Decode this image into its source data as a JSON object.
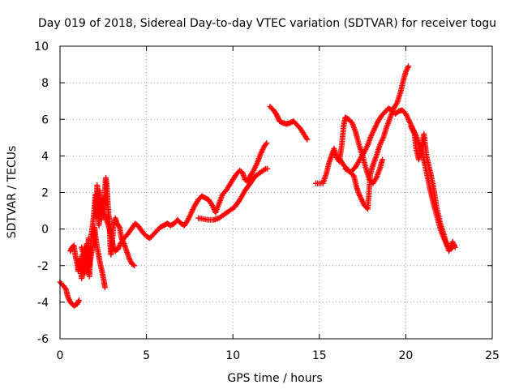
{
  "chart_data": {
    "type": "scatter",
    "title": "Day 019 of 2018, Sidereal Day-to-day VTEC variation (SDTVAR) for receiver togu",
    "xlabel": "GPS time / hours",
    "ylabel": "SDTVAR / TECUs",
    "xlim": [
      0,
      25
    ],
    "ylim": [
      -6,
      10
    ],
    "xticks": [
      "0",
      "5",
      "10",
      "15",
      "20",
      "25"
    ],
    "yticks": [
      "-6",
      "-4",
      "-2",
      "0",
      "2",
      "4",
      "6",
      "8",
      "10"
    ],
    "grid": true,
    "marker": "+",
    "color": "#ff0000",
    "series": [
      {
        "name": "SDTVAR",
        "segments": [
          [
            [
              0.0,
              -2.9
            ],
            [
              0.2,
              -3.1
            ],
            [
              0.35,
              -3.3
            ],
            [
              0.45,
              -3.7
            ],
            [
              0.6,
              -4.0
            ],
            [
              0.8,
              -4.2
            ],
            [
              1.0,
              -4.1
            ],
            [
              1.1,
              -3.9
            ]
          ],
          [
            [
              0.6,
              -1.2
            ],
            [
              0.7,
              -1.0
            ],
            [
              0.8,
              -0.9
            ],
            [
              0.9,
              -1.5
            ],
            [
              1.0,
              -1.9
            ],
            [
              1.05,
              -2.3
            ],
            [
              1.15,
              -1.6
            ],
            [
              1.25,
              -2.7
            ],
            [
              1.3,
              -1.4
            ],
            [
              1.4,
              -2.5
            ],
            [
              1.5,
              -1.1
            ],
            [
              1.55,
              -0.8
            ],
            [
              1.6,
              -2.0
            ],
            [
              1.65,
              -0.5
            ],
            [
              1.7,
              -2.6
            ],
            [
              1.8,
              -0.4
            ],
            [
              1.9,
              0.3
            ],
            [
              2.0,
              1.2
            ],
            [
              2.05,
              1.9
            ],
            [
              2.1,
              0.6
            ],
            [
              2.15,
              2.4
            ],
            [
              2.2,
              1.4
            ],
            [
              2.25,
              0.2
            ],
            [
              2.3,
              2.1
            ],
            [
              2.35,
              1.0
            ],
            [
              2.4,
              0.5
            ],
            [
              2.5,
              1.7
            ],
            [
              2.55,
              1.0
            ],
            [
              2.6,
              2.2
            ],
            [
              2.65,
              2.8
            ],
            [
              2.7,
              2.4
            ],
            [
              2.75,
              1.6
            ],
            [
              2.8,
              0.9
            ],
            [
              2.85,
              0.5
            ],
            [
              2.9,
              -0.8
            ],
            [
              2.95,
              -1.4
            ],
            [
              3.0,
              -0.9
            ],
            [
              3.1,
              0.2
            ],
            [
              3.2,
              0.6
            ],
            [
              3.3,
              0.3
            ],
            [
              3.45,
              0.1
            ],
            [
              3.55,
              -0.5
            ],
            [
              3.7,
              -0.8
            ],
            [
              3.85,
              -1.2
            ],
            [
              4.0,
              -1.6
            ],
            [
              4.15,
              -1.9
            ],
            [
              4.3,
              -2.0
            ]
          ],
          [
            [
              1.25,
              -1.0
            ],
            [
              1.35,
              -1.3
            ],
            [
              1.45,
              -1.8
            ],
            [
              1.55,
              -2.2
            ],
            [
              1.65,
              -2.4
            ],
            [
              1.75,
              -1.7
            ],
            [
              1.85,
              -1.2
            ],
            [
              1.95,
              -0.7
            ],
            [
              2.0,
              0.1
            ],
            [
              2.05,
              -0.4
            ],
            [
              2.15,
              -1.0
            ],
            [
              2.25,
              -1.5
            ],
            [
              2.35,
              -2.0
            ],
            [
              2.45,
              -2.4
            ],
            [
              2.55,
              -2.9
            ],
            [
              2.6,
              -3.2
            ]
          ],
          [
            [
              2.6,
              0.8
            ],
            [
              2.7,
              0.5
            ],
            [
              2.8,
              0.2
            ],
            [
              2.9,
              -0.1
            ],
            [
              3.0,
              -0.6
            ],
            [
              3.1,
              -1.0
            ],
            [
              3.2,
              -1.2
            ],
            [
              3.35,
              -1.1
            ],
            [
              3.5,
              -0.8
            ],
            [
              3.7,
              -0.5
            ],
            [
              3.9,
              -0.3
            ],
            [
              4.05,
              -0.1
            ],
            [
              4.2,
              0.1
            ],
            [
              4.35,
              0.3
            ],
            [
              4.5,
              0.2
            ],
            [
              4.65,
              0.0
            ],
            [
              4.8,
              -0.2
            ],
            [
              5.0,
              -0.4
            ],
            [
              5.2,
              -0.5
            ],
            [
              5.4,
              -0.3
            ],
            [
              5.6,
              -0.1
            ],
            [
              5.8,
              0.1
            ],
            [
              6.0,
              0.2
            ],
            [
              6.2,
              0.3
            ],
            [
              6.4,
              0.2
            ],
            [
              6.6,
              0.3
            ],
            [
              6.8,
              0.5
            ],
            [
              7.0,
              0.3
            ],
            [
              7.2,
              0.2
            ],
            [
              7.4,
              0.5
            ],
            [
              7.6,
              0.9
            ],
            [
              7.8,
              1.3
            ],
            [
              8.0,
              1.6
            ],
            [
              8.2,
              1.8
            ],
            [
              8.4,
              1.7
            ],
            [
              8.6,
              1.6
            ],
            [
              8.8,
              1.3
            ],
            [
              9.0,
              0.9
            ],
            [
              9.2,
              1.4
            ],
            [
              9.4,
              1.9
            ],
            [
              9.6,
              2.1
            ],
            [
              9.8,
              2.4
            ],
            [
              10.0,
              2.7
            ],
            [
              10.2,
              3.0
            ],
            [
              10.4,
              3.2
            ],
            [
              10.55,
              3.1
            ],
            [
              10.7,
              2.7
            ],
            [
              10.85,
              2.6
            ],
            [
              11.0,
              2.9
            ],
            [
              11.2,
              3.2
            ],
            [
              11.4,
              3.6
            ],
            [
              11.6,
              4.1
            ],
            [
              11.8,
              4.5
            ],
            [
              11.95,
              4.7
            ]
          ],
          [
            [
              8.0,
              0.6
            ],
            [
              8.3,
              0.55
            ],
            [
              8.6,
              0.5
            ],
            [
              8.9,
              0.5
            ],
            [
              9.2,
              0.6
            ],
            [
              9.5,
              0.8
            ],
            [
              9.8,
              1.0
            ],
            [
              10.1,
              1.2
            ],
            [
              10.4,
              1.6
            ],
            [
              10.7,
              2.1
            ],
            [
              11.0,
              2.5
            ],
            [
              11.3,
              2.9
            ],
            [
              11.6,
              3.1
            ],
            [
              11.9,
              3.3
            ],
            [
              12.0,
              3.3
            ]
          ],
          [
            [
              12.15,
              6.7
            ],
            [
              12.35,
              6.5
            ],
            [
              12.5,
              6.3
            ],
            [
              12.6,
              6.1
            ],
            [
              12.7,
              5.9
            ],
            [
              12.9,
              5.8
            ],
            [
              13.1,
              5.75
            ],
            [
              13.3,
              5.8
            ],
            [
              13.5,
              5.9
            ],
            [
              13.7,
              5.7
            ],
            [
              13.9,
              5.5
            ],
            [
              14.1,
              5.2
            ],
            [
              14.3,
              4.9
            ]
          ],
          [
            [
              14.8,
              2.5
            ],
            [
              15.0,
              2.5
            ],
            [
              15.2,
              2.5
            ],
            [
              15.4,
              3.0
            ],
            [
              15.55,
              3.6
            ],
            [
              15.7,
              4.0
            ],
            [
              15.85,
              4.4
            ],
            [
              16.0,
              3.9
            ],
            [
              16.15,
              3.7
            ],
            [
              16.3,
              4.6
            ],
            [
              16.4,
              5.6
            ],
            [
              16.5,
              6.1
            ],
            [
              16.7,
              6.0
            ],
            [
              16.9,
              5.8
            ],
            [
              17.1,
              5.3
            ],
            [
              17.3,
              4.6
            ],
            [
              17.5,
              4.0
            ],
            [
              17.7,
              3.3
            ],
            [
              17.9,
              2.7
            ],
            [
              18.1,
              2.5
            ],
            [
              18.3,
              2.8
            ],
            [
              18.5,
              3.3
            ],
            [
              18.65,
              3.8
            ]
          ],
          [
            [
              16.0,
              4.0
            ],
            [
              16.2,
              3.8
            ],
            [
              16.4,
              3.5
            ],
            [
              16.6,
              3.3
            ],
            [
              16.8,
              3.1
            ],
            [
              17.0,
              2.9
            ],
            [
              17.15,
              2.3
            ],
            [
              17.3,
              1.9
            ],
            [
              17.45,
              1.6
            ],
            [
              17.6,
              1.3
            ],
            [
              17.8,
              1.1
            ],
            [
              17.95,
              3.0
            ],
            [
              18.1,
              3.5
            ],
            [
              18.3,
              4.0
            ],
            [
              18.5,
              4.6
            ],
            [
              18.7,
              5.0
            ],
            [
              18.9,
              5.6
            ],
            [
              19.1,
              6.1
            ],
            [
              19.3,
              6.6
            ],
            [
              19.5,
              6.9
            ],
            [
              19.7,
              7.5
            ],
            [
              19.85,
              8.1
            ],
            [
              20.0,
              8.6
            ],
            [
              20.15,
              8.9
            ]
          ],
          [
            [
              16.5,
              3.3
            ],
            [
              16.8,
              3.1
            ],
            [
              17.1,
              3.4
            ],
            [
              17.4,
              3.9
            ],
            [
              17.6,
              4.2
            ],
            [
              17.8,
              4.6
            ],
            [
              18.0,
              5.1
            ],
            [
              18.2,
              5.5
            ],
            [
              18.4,
              5.9
            ],
            [
              18.6,
              6.2
            ],
            [
              18.8,
              6.4
            ],
            [
              19.0,
              6.6
            ],
            [
              19.2,
              6.5
            ],
            [
              19.4,
              6.3
            ],
            [
              19.6,
              6.45
            ],
            [
              19.8,
              6.5
            ],
            [
              20.0,
              6.3
            ],
            [
              20.2,
              5.9
            ],
            [
              20.4,
              5.5
            ],
            [
              20.6,
              5.1
            ],
            [
              20.8,
              4.6
            ],
            [
              21.0,
              4.0
            ],
            [
              21.2,
              3.1
            ],
            [
              21.4,
              2.2
            ],
            [
              21.6,
              1.4
            ],
            [
              21.8,
              0.7
            ],
            [
              22.0,
              0.0
            ],
            [
              22.2,
              -0.5
            ],
            [
              22.4,
              -0.9
            ],
            [
              22.6,
              -1.1
            ],
            [
              22.8,
              -0.9
            ]
          ],
          [
            [
              20.3,
              5.6
            ],
            [
              20.5,
              5.2
            ],
            [
              20.6,
              4.4
            ],
            [
              20.75,
              3.8
            ],
            [
              20.9,
              4.5
            ],
            [
              21.05,
              5.2
            ],
            [
              21.2,
              4.0
            ],
            [
              21.4,
              3.2
            ],
            [
              21.6,
              2.3
            ],
            [
              21.8,
              1.1
            ],
            [
              22.0,
              0.3
            ],
            [
              22.2,
              -0.3
            ],
            [
              22.35,
              -0.8
            ],
            [
              22.5,
              -1.2
            ],
            [
              22.7,
              -0.7
            ],
            [
              22.85,
              -1.0
            ]
          ]
        ]
      }
    ]
  }
}
